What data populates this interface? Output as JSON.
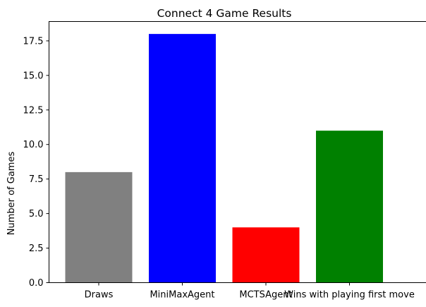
{
  "chart_data": {
    "type": "bar",
    "title": "Connect 4 Game Results",
    "xlabel": "",
    "ylabel": "Number of Games",
    "categories": [
      "Draws",
      "MiniMaxAgent",
      "MCTSAgent",
      "Wins with playing first move"
    ],
    "values": [
      8,
      18,
      4,
      11
    ],
    "colors": [
      "#808080",
      "#0000ff",
      "#ff0000",
      "#008000"
    ],
    "ylim": [
      0,
      18.9
    ],
    "yticks": [
      0.0,
      2.5,
      5.0,
      7.5,
      10.0,
      12.5,
      15.0,
      17.5
    ],
    "ytick_labels": [
      "0.0",
      "2.5",
      "5.0",
      "7.5",
      "10.0",
      "12.5",
      "15.0",
      "17.5"
    ],
    "grid": false,
    "legend": "none"
  }
}
